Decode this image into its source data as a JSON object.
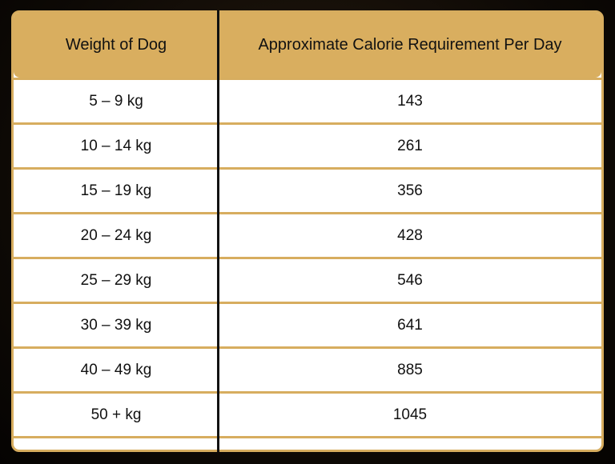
{
  "table": {
    "header": [
      "Weight of Dog",
      "Approximate Calorie Requirement Per Day"
    ],
    "rows": [
      [
        "5 – 9 kg",
        143
      ],
      [
        "10 – 14 kg",
        261
      ],
      [
        "15 – 19 kg",
        356
      ],
      [
        "20 – 24 kg",
        428
      ],
      [
        "25 – 29 kg",
        546
      ],
      [
        "30 – 39 kg",
        641
      ],
      [
        "40 – 49 kg",
        885
      ],
      [
        "50 + kg",
        1045
      ]
    ]
  }
}
